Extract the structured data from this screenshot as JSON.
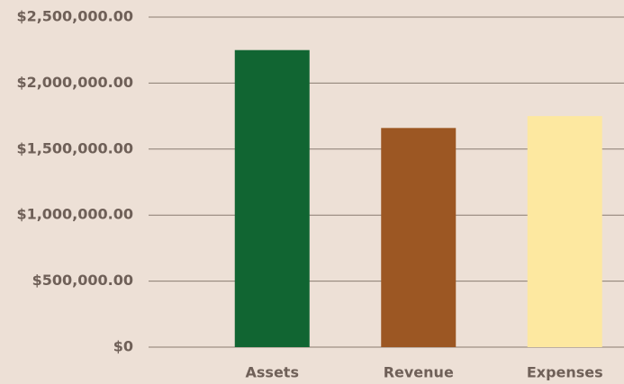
{
  "chart_data": {
    "type": "bar",
    "categories": [
      "Assets",
      "Revenue",
      "Expenses"
    ],
    "values": [
      2250000,
      1660000,
      1750000
    ],
    "colors": [
      "#116532",
      "#9c5723",
      "#fde8a0"
    ],
    "ylim": [
      0,
      2500000
    ],
    "yticks": [
      {
        "value": 0,
        "label": "$0"
      },
      {
        "value": 500000,
        "label": "$500,000.00"
      },
      {
        "value": 1000000,
        "label": "$1,000,000.00"
      },
      {
        "value": 1500000,
        "label": "$1,500,000.00"
      },
      {
        "value": 2000000,
        "label": "$2,000,000.00"
      },
      {
        "value": 2500000,
        "label": "$2,500,000.00"
      }
    ],
    "grid": true
  }
}
